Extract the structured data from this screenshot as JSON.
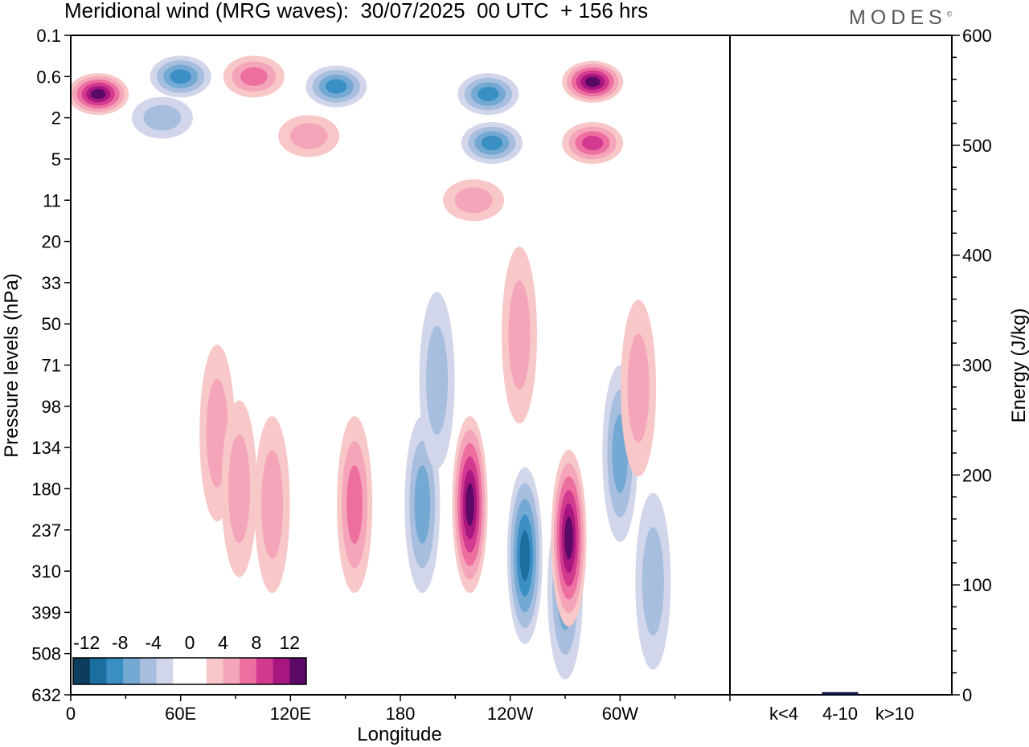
{
  "title": "Meridional wind (MRG waves):  30/07/2025  00 UTC  + 156 hrs",
  "brand": "MODES",
  "brand_mark": "©",
  "colors": {
    "neg": [
      "#0d3d5c",
      "#1b6ea0",
      "#3a8fc4",
      "#73a9d2",
      "#a7bedf",
      "#d2d6ea"
    ],
    "pos": [
      "#f8c7c7",
      "#f4a5b9",
      "#ec6fa0",
      "#d23a90",
      "#a8167f",
      "#5a0a66"
    ],
    "bar_fill": "#111a78"
  },
  "chart_data": [
    {
      "type": "heatmap",
      "title": "Meridional wind (MRG waves)",
      "xlabel": "Longitude",
      "ylabel": "Pressure levels (hPa)",
      "x_ticks": [
        "0",
        "60E",
        "120E",
        "180",
        "120W",
        "60W"
      ],
      "y_ticks": [
        "0.1",
        "0.6",
        "2",
        "5",
        "11",
        "20",
        "33",
        "50",
        "71",
        "98",
        "134",
        "180",
        "237",
        "310",
        "399",
        "508",
        "632"
      ],
      "colorbar": {
        "labels": [
          "-12",
          "-8",
          "-4",
          "0",
          "4",
          "8",
          "12"
        ],
        "levels": [
          -14,
          -12,
          -10,
          -8,
          -6,
          -4,
          -2,
          2,
          4,
          6,
          8,
          10,
          12,
          14
        ]
      },
      "features": [
        {
          "lon": 15,
          "level": 1.0,
          "value": 14
        },
        {
          "lon": 60,
          "level": 0.6,
          "value": -9
        },
        {
          "lon": 100,
          "level": 0.6,
          "value": 6
        },
        {
          "lon": 145,
          "level": 0.8,
          "value": -10
        },
        {
          "lon": 228,
          "level": 1.0,
          "value": -10
        },
        {
          "lon": 285,
          "level": 0.7,
          "value": 15
        },
        {
          "lon": 230,
          "level": 3.5,
          "value": -9
        },
        {
          "lon": 285,
          "level": 3.5,
          "value": 9
        },
        {
          "lon": 50,
          "level": 2.0,
          "value": -5
        },
        {
          "lon": 130,
          "level": 3.0,
          "value": 5
        },
        {
          "lon": 220,
          "level": 11,
          "value": 5
        },
        {
          "lon": 270,
          "level": 350,
          "value": -6
        },
        {
          "lon": 80,
          "level": 120,
          "value": 4
        },
        {
          "lon": 92,
          "level": 180,
          "value": 5
        },
        {
          "lon": 110,
          "level": 200,
          "value": 4
        },
        {
          "lon": 155,
          "level": 200,
          "value": 6
        },
        {
          "lon": 192,
          "level": 200,
          "value": -6
        },
        {
          "lon": 218,
          "level": 200,
          "value": 13
        },
        {
          "lon": 248,
          "level": 280,
          "value": -11
        },
        {
          "lon": 272,
          "level": 250,
          "value": 14
        },
        {
          "lon": 300,
          "level": 140,
          "value": -8
        },
        {
          "lon": 310,
          "level": 85,
          "value": 5
        },
        {
          "lon": 245,
          "level": 55,
          "value": 4
        },
        {
          "lon": 200,
          "level": 80,
          "value": -5
        },
        {
          "lon": 318,
          "level": 330,
          "value": -5
        }
      ]
    },
    {
      "type": "bar",
      "categories": [
        "k<4",
        "4-10",
        "k>10"
      ],
      "values": [
        0,
        2,
        0
      ],
      "ylabel": "Energy (J/kg)",
      "ylim": [
        0,
        600
      ],
      "y_ticks": [
        "0",
        "100",
        "200",
        "300",
        "400",
        "500",
        "600"
      ]
    }
  ]
}
